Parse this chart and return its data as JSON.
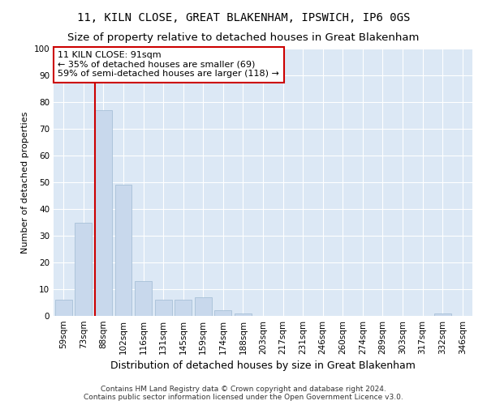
{
  "title1": "11, KILN CLOSE, GREAT BLAKENHAM, IPSWICH, IP6 0GS",
  "title2": "Size of property relative to detached houses in Great Blakenham",
  "xlabel": "Distribution of detached houses by size in Great Blakenham",
  "ylabel": "Number of detached properties",
  "categories": [
    "59sqm",
    "73sqm",
    "88sqm",
    "102sqm",
    "116sqm",
    "131sqm",
    "145sqm",
    "159sqm",
    "174sqm",
    "188sqm",
    "203sqm",
    "217sqm",
    "231sqm",
    "246sqm",
    "260sqm",
    "274sqm",
    "289sqm",
    "303sqm",
    "317sqm",
    "332sqm",
    "346sqm"
  ],
  "values": [
    6,
    35,
    77,
    49,
    13,
    6,
    6,
    7,
    2,
    1,
    0,
    0,
    0,
    0,
    0,
    0,
    0,
    0,
    0,
    1,
    0
  ],
  "bar_color": "#c8d8ec",
  "bar_edge_color": "#a8c0d8",
  "vline_x_index": 2,
  "vline_color": "#cc0000",
  "annotation_text": "11 KILN CLOSE: 91sqm\n← 35% of detached houses are smaller (69)\n59% of semi-detached houses are larger (118) →",
  "annotation_box_color": "#ffffff",
  "annotation_box_edgecolor": "#cc0000",
  "ylim": [
    0,
    100
  ],
  "yticks": [
    0,
    10,
    20,
    30,
    40,
    50,
    60,
    70,
    80,
    90,
    100
  ],
  "footer1": "Contains HM Land Registry data © Crown copyright and database right 2024.",
  "footer2": "Contains public sector information licensed under the Open Government Licence v3.0.",
  "fig_facecolor": "#ffffff",
  "plot_bg_color": "#dce8f5",
  "grid_color": "#ffffff",
  "title1_fontsize": 10,
  "title2_fontsize": 9.5,
  "ylabel_fontsize": 8,
  "xlabel_fontsize": 9,
  "tick_fontsize": 7.5,
  "footer_fontsize": 6.5,
  "ann_fontsize": 8
}
